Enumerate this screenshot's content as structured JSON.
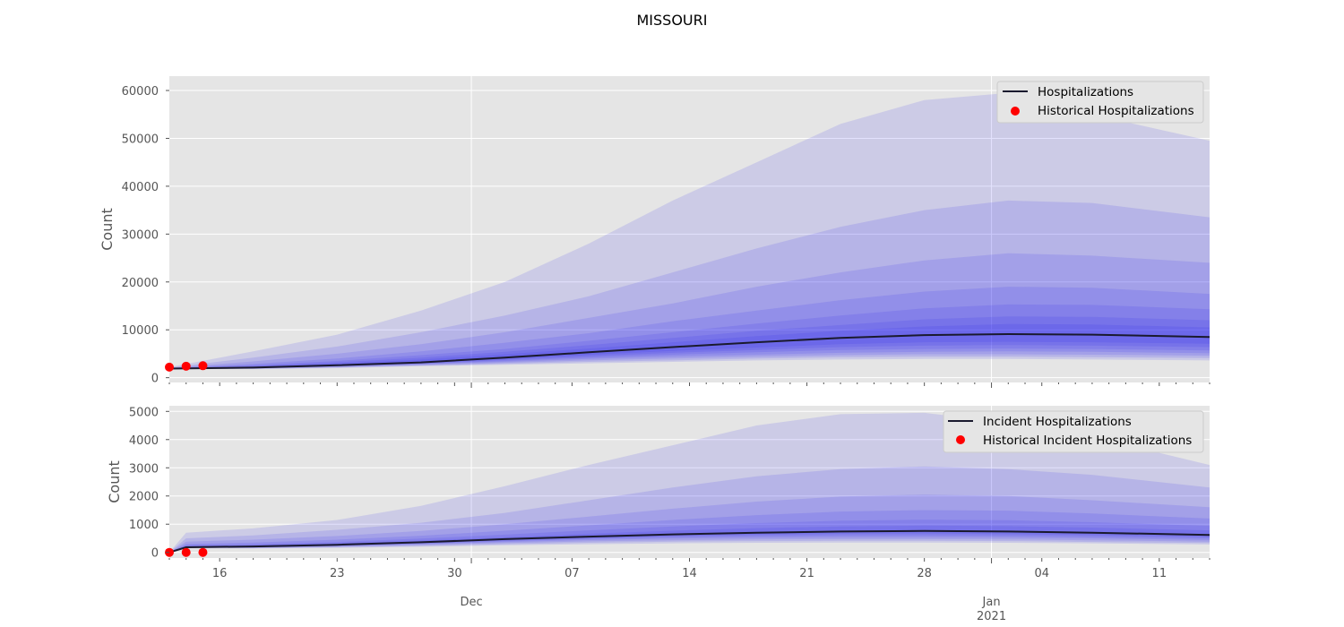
{
  "figure": {
    "title": "MISSOURI"
  },
  "colors": {
    "background": "#e5e5e5",
    "grid": "#ffffff",
    "band": "#2a1cf0",
    "median": "#1a1a2e",
    "historical": "#ff0000"
  },
  "chart_data": [
    {
      "type": "area",
      "name": "hospitalizations-panel",
      "ylabel": "Count",
      "xlim": [
        "2020-11-13",
        "2021-01-14"
      ],
      "ylim": [
        -1000,
        63000
      ],
      "yticks": [
        0,
        10000,
        20000,
        30000,
        40000,
        50000,
        60000
      ],
      "grid": true,
      "legend_position": "top-right",
      "legend": [
        "Hospitalizations",
        "Historical Hospitalizations"
      ],
      "x": [
        "2020-11-13",
        "2020-11-18",
        "2020-11-23",
        "2020-11-28",
        "2020-12-03",
        "2020-12-08",
        "2020-12-13",
        "2020-12-18",
        "2020-12-23",
        "2020-12-28",
        "2021-01-02",
        "2021-01-07",
        "2021-01-14"
      ],
      "median": [
        1900,
        2100,
        2600,
        3200,
        4200,
        5300,
        6400,
        7400,
        8300,
        8900,
        9100,
        9000,
        8500
      ],
      "bands": [
        {
          "lower": [
            1900,
            1800,
            2000,
            2400,
            2700,
            3000,
            3300,
            3600,
            3800,
            3900,
            3900,
            3800,
            3600
          ],
          "upper": [
            2200,
            5500,
            9000,
            14000,
            20000,
            28000,
            37000,
            45000,
            53000,
            58000,
            59500,
            55000,
            49500
          ]
        },
        {
          "lower": [
            1900,
            1850,
            2100,
            2500,
            2900,
            3300,
            3600,
            4000,
            4300,
            4400,
            4400,
            4300,
            4100
          ],
          "upper": [
            2100,
            4200,
            6500,
            9500,
            13000,
            17000,
            22000,
            27000,
            31500,
            35000,
            37000,
            36500,
            33500
          ]
        },
        {
          "lower": [
            1900,
            1900,
            2200,
            2600,
            3100,
            3600,
            4000,
            4400,
            4700,
            4900,
            4900,
            4800,
            4600
          ],
          "upper": [
            2050,
            3400,
            5000,
            7000,
            9500,
            12500,
            15500,
            19000,
            22000,
            24500,
            26000,
            25500,
            24000
          ]
        },
        {
          "lower": [
            1900,
            1950,
            2300,
            2800,
            3300,
            3900,
            4400,
            4800,
            5200,
            5400,
            5500,
            5400,
            5100
          ],
          "upper": [
            2000,
            2900,
            4000,
            5500,
            7300,
            9300,
            11800,
            14000,
            16200,
            18000,
            19000,
            18800,
            17500
          ]
        },
        {
          "lower": [
            1900,
            2000,
            2400,
            2900,
            3500,
            4200,
            4800,
            5300,
            5800,
            6000,
            6100,
            6000,
            5700
          ],
          "upper": [
            2000,
            2600,
            3500,
            4700,
            6000,
            7700,
            9500,
            11300,
            13000,
            14500,
            15300,
            15200,
            14300
          ]
        },
        {
          "lower": [
            1900,
            2000,
            2450,
            3000,
            3700,
            4500,
            5200,
            5800,
            6400,
            6700,
            6800,
            6700,
            6400
          ],
          "upper": [
            1950,
            2400,
            3200,
            4200,
            5400,
            6800,
            8300,
            9800,
            11000,
            12200,
            12800,
            12700,
            12000
          ]
        },
        {
          "lower": [
            1900,
            2050,
            2500,
            3100,
            3900,
            4800,
            5600,
            6300,
            7000,
            7400,
            7500,
            7400,
            7100
          ],
          "upper": [
            1950,
            2250,
            2900,
            3800,
            4900,
            6100,
            7400,
            8700,
            9800,
            10700,
            11200,
            11100,
            10500
          ]
        }
      ],
      "historical": {
        "x": [
          "2020-11-13",
          "2020-11-14",
          "2020-11-15"
        ],
        "y": [
          2200,
          2400,
          2500
        ]
      },
      "xticks_minor_labels": [
        "16",
        "23",
        "30",
        "07",
        "14",
        "21",
        "28",
        "04",
        "11"
      ]
    },
    {
      "type": "area",
      "name": "incident-hospitalizations-panel",
      "ylabel": "Count",
      "xlim": [
        "2020-11-13",
        "2021-01-14"
      ],
      "ylim": [
        -200,
        5200
      ],
      "yticks": [
        0,
        1000,
        2000,
        3000,
        4000,
        5000
      ],
      "grid": true,
      "legend_position": "top-right",
      "legend": [
        "Incident Hospitalizations",
        "Historical Incident Hospitalizations"
      ],
      "x": [
        "2020-11-13",
        "2020-11-14",
        "2020-11-18",
        "2020-11-23",
        "2020-11-28",
        "2020-12-03",
        "2020-12-08",
        "2020-12-13",
        "2020-12-18",
        "2020-12-23",
        "2020-12-28",
        "2021-01-02",
        "2021-01-07",
        "2021-01-14"
      ],
      "median": [
        0,
        180,
        210,
        270,
        360,
        470,
        560,
        640,
        700,
        740,
        760,
        740,
        700,
        620
      ],
      "bands": [
        {
          "lower": [
            0,
            150,
            140,
            160,
            200,
            250,
            290,
            320,
            340,
            350,
            350,
            340,
            320,
            280
          ],
          "upper": [
            0,
            700,
            850,
            1150,
            1650,
            2350,
            3100,
            3800,
            4500,
            4900,
            4950,
            4600,
            4100,
            3100
          ]
        },
        {
          "lower": [
            0,
            160,
            150,
            180,
            230,
            290,
            340,
            380,
            400,
            410,
            410,
            400,
            370,
            330
          ],
          "upper": [
            0,
            500,
            600,
            800,
            1050,
            1400,
            1850,
            2300,
            2700,
            2950,
            3050,
            2950,
            2750,
            2300
          ]
        },
        {
          "lower": [
            0,
            165,
            165,
            200,
            260,
            330,
            390,
            430,
            460,
            470,
            470,
            460,
            430,
            380
          ],
          "upper": [
            0,
            380,
            450,
            580,
            760,
            1000,
            1270,
            1550,
            1800,
            1980,
            2050,
            2000,
            1850,
            1600
          ]
        },
        {
          "lower": [
            0,
            170,
            175,
            220,
            290,
            370,
            440,
            490,
            520,
            540,
            540,
            530,
            500,
            440
          ],
          "upper": [
            0,
            300,
            350,
            450,
            590,
            770,
            960,
            1150,
            1320,
            1450,
            1500,
            1480,
            1380,
            1200
          ]
        },
        {
          "lower": [
            0,
            172,
            185,
            235,
            310,
            400,
            480,
            540,
            580,
            600,
            600,
            590,
            560,
            500
          ],
          "upper": [
            0,
            250,
            290,
            370,
            490,
            630,
            780,
            920,
            1040,
            1120,
            1160,
            1140,
            1070,
            940
          ]
        },
        {
          "lower": [
            0,
            175,
            195,
            250,
            330,
            430,
            510,
            580,
            630,
            660,
            670,
            650,
            620,
            550
          ],
          "upper": [
            0,
            220,
            250,
            320,
            420,
            540,
            660,
            770,
            860,
            920,
            950,
            930,
            880,
            780
          ]
        }
      ],
      "historical": {
        "x": [
          "2020-11-13",
          "2020-11-14",
          "2020-11-15"
        ],
        "y": [
          0,
          0,
          0
        ]
      },
      "xticks_minor_labels": [
        "16",
        "23",
        "30",
        "07",
        "14",
        "21",
        "28",
        "04",
        "11"
      ],
      "xticks_major_labels": [
        "Dec",
        "Jan\n2021"
      ]
    }
  ]
}
